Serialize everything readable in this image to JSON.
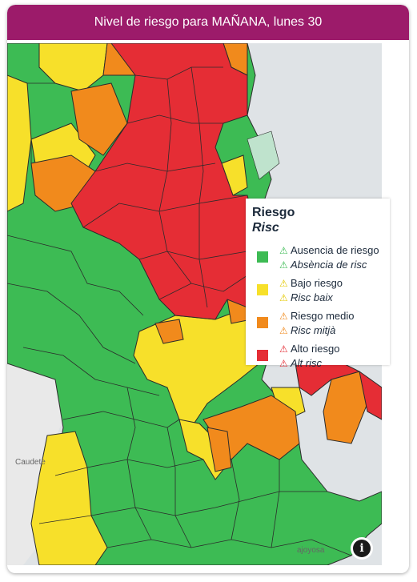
{
  "header": {
    "title": "Nivel de riesgo para MAÑANA, lunes 30"
  },
  "legend": {
    "title": "Riesgo",
    "subtitle": "Risc",
    "items": [
      {
        "label_es": "Ausencia de riesgo",
        "label_va": "Absència de risc",
        "color": "#3dbb54",
        "icon": "warning-triangle-icon"
      },
      {
        "label_es": "Bajo riesgo",
        "label_va": "Risc baix",
        "color": "#f7e02a",
        "icon": "warning-triangle-icon"
      },
      {
        "label_es": "Riesgo medio",
        "label_va": "Risc mitjà",
        "color": "#f18a1c",
        "icon": "warning-triangle-icon"
      },
      {
        "label_es": "Alto riesgo",
        "label_va": "Alt risc",
        "color": "#e52d35",
        "icon": "warning-triangle-icon"
      }
    ]
  },
  "places": {
    "caudete": "Caudete",
    "joyosa": "ajoyosa"
  },
  "info_button": {
    "glyph": "i",
    "icon": "info-icon"
  },
  "colors": {
    "header": "#9c1b6a",
    "sea": "#dfe3e6",
    "border": "#2b2b2b"
  }
}
